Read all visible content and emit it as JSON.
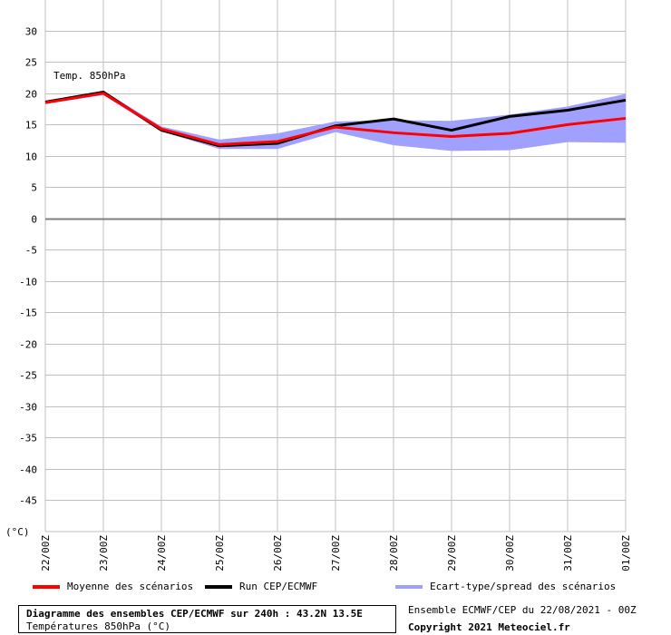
{
  "chart_data": {
    "type": "line",
    "annotation": "Temp. 850hPa",
    "unit_label": "(°C)",
    "x": [
      "22/00Z",
      "23/00Z",
      "24/00Z",
      "25/00Z",
      "26/00Z",
      "27/00Z",
      "28/00Z",
      "29/00Z",
      "30/00Z",
      "31/00Z",
      "01/00Z"
    ],
    "yticks": [
      30,
      25,
      20,
      15,
      10,
      5,
      0,
      -5,
      -10,
      -15,
      -20,
      -25,
      -30,
      -35,
      -40,
      -45
    ],
    "ylim": [
      -50,
      32
    ],
    "grid": true,
    "series": [
      {
        "name": "Moyenne des scénarios",
        "color": "#ff0000",
        "values": [
          18.5,
          20.0,
          14.3,
          11.8,
          12.3,
          14.6,
          13.7,
          13.1,
          13.6,
          15.0,
          16.0
        ]
      },
      {
        "name": "Run CEP/ECMWF",
        "color": "#000000",
        "values": [
          18.6,
          20.2,
          14.1,
          11.6,
          12.0,
          14.8,
          15.9,
          14.1,
          16.3,
          17.3,
          18.9
        ]
      }
    ],
    "spread": {
      "name": "Ecart-type/spread des scénarios",
      "color": "#a0a0ff",
      "upper": [
        18.8,
        20.4,
        14.7,
        12.6,
        13.6,
        15.5,
        15.7,
        15.6,
        16.6,
        17.9,
        19.9
      ],
      "lower": [
        18.3,
        19.7,
        13.9,
        11.1,
        11.1,
        13.8,
        11.7,
        10.8,
        10.9,
        12.2,
        12.1
      ]
    }
  },
  "legend": {
    "mean": "Moyenne des scénarios",
    "run": "Run CEP/ECMWF",
    "spread": "Ecart-type/spread des scénarios"
  },
  "footer": {
    "title": "Diagramme des ensembles CEP/ECMWF sur 240h : 43.2N 13.5E",
    "subtitle": "Températures 850hPa (°C)",
    "ensemble": "Ensemble ECMWF/CEP du 22/08/2021 - 00Z",
    "copyright": "Copyright 2021 Meteociel.fr"
  },
  "colors": {
    "mean": "#ff0000",
    "run": "#000000",
    "spread": "#a0a0ff",
    "grid": "#c0c0c0"
  }
}
